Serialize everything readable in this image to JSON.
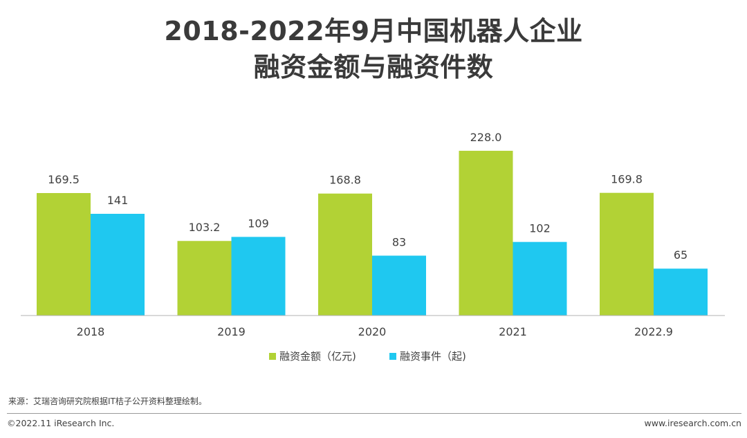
{
  "title_line1": "2018-2022年9月中国机器人企业",
  "title_line2": "融资金额与融资件数",
  "chart_data": {
    "type": "bar",
    "categories": [
      "2018",
      "2019",
      "2020",
      "2021",
      "2022.9"
    ],
    "series": [
      {
        "name": "融资金额（亿元)",
        "values": [
          169.5,
          103.2,
          168.8,
          228.0,
          169.8
        ],
        "labels": [
          "169.5",
          "103.2",
          "168.8",
          "228.0",
          "169.8"
        ],
        "color": "#b2d235"
      },
      {
        "name": "融资事件（起)",
        "values": [
          141,
          109,
          83,
          102,
          65
        ],
        "labels": [
          "141",
          "109",
          "83",
          "102",
          "65"
        ],
        "color": "#1fc8f0"
      }
    ],
    "legend_position": "bottom"
  },
  "footer": {
    "source": "来源：艾瑞咨询研究院根据IT桔子公开资料整理绘制。",
    "copyright": "©2022.11 iResearch Inc.",
    "website": "www.iresearch.com.cn"
  }
}
